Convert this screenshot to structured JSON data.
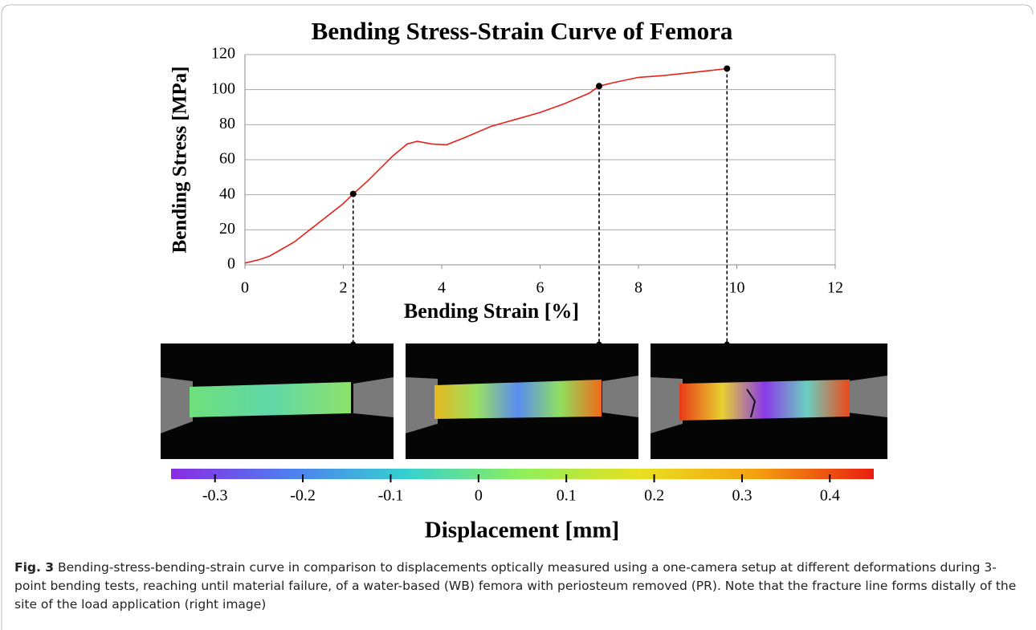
{
  "chart_data": {
    "type": "line",
    "title": "Bending Stress-Strain Curve of Femora",
    "x_label": "Bending Strain [%]",
    "y_label": "Bending Stress [MPa]",
    "x": [
      0,
      0.3,
      0.5,
      1,
      1.5,
      2,
      2.2,
      2.5,
      3,
      3.3,
      3.5,
      3.8,
      4.1,
      4.5,
      5,
      5.5,
      6,
      6.5,
      7,
      7.2,
      7.5,
      8,
      8.5,
      9,
      9.5,
      9.8
    ],
    "values": [
      1,
      3,
      5,
      13,
      24,
      35,
      40.5,
      48,
      62,
      69,
      70.5,
      69,
      68.5,
      73,
      79,
      83,
      87,
      92,
      98,
      102,
      104,
      107,
      108,
      109.5,
      111,
      112
    ],
    "color": "#e8211b",
    "highlighted_points": {
      "x": [
        2.2,
        7.2,
        9.8
      ],
      "y": [
        40.5,
        102,
        112
      ]
    },
    "xlim": [
      0,
      12
    ],
    "xticks": [
      0,
      2,
      4,
      6,
      8,
      10,
      12
    ],
    "ylim": [
      0,
      120
    ],
    "yticks": [
      0,
      20,
      40,
      60,
      80,
      100,
      120
    ],
    "grid": true
  },
  "colorbar": {
    "label": "Displacement [mm]",
    "lim": [
      -0.35,
      0.45
    ],
    "ticks": [
      -0.3,
      -0.2,
      -0.1,
      0,
      0.1,
      0.2,
      0.3,
      0.4
    ],
    "colors": [
      "#8a2be2",
      "#4f7df0",
      "#35d0d0",
      "#8ef05a",
      "#e8e020",
      "#f5a010",
      "#e81e10"
    ]
  },
  "caption": {
    "label": "Fig. 3",
    "text": "Bending-stress-bending-strain curve in comparison to displacements optically measured using a one-camera setup at different deformations during 3-point bending tests, reaching until material failure, of a water-based (WB) femora with periosteum removed (PR). Note that the fracture line forms distally of the site of the load application (right image)"
  }
}
